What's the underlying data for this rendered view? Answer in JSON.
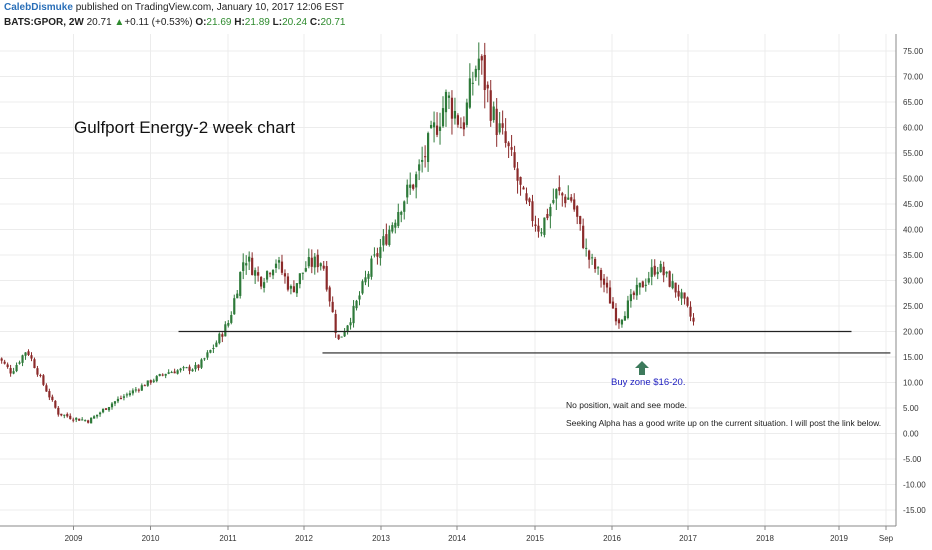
{
  "header": {
    "author": "CalebDismuke",
    "published": " published on TradingView.com, January 10, 2017 12:06 EST",
    "symbol": "BATS:GPOR, 2W",
    "last": "20.71",
    "up_arrow": "▲",
    "change": "+0.11 (+0.53%)",
    "o_label": "O:",
    "o_value": "21.69",
    "h_label": "H:",
    "h_value": "21.89",
    "l_label": "L:",
    "l_value": "20.24",
    "c_label": "C:",
    "c_value": "20.71"
  },
  "colors": {
    "up": "#2e7a3a",
    "down": "#8b2a2a",
    "line": "#222222",
    "grid": "#ececec",
    "arrow": "#3d7a5c",
    "buy_text": "#2020c0"
  },
  "chart_data": {
    "type": "candlestick",
    "title": "Gulfport Energy-2 week chart",
    "ylim": [
      -17.5,
      77.5
    ],
    "y_ticks": [
      "75.00",
      "70.00",
      "65.00",
      "60.00",
      "55.00",
      "50.00",
      "45.00",
      "40.00",
      "35.00",
      "30.00",
      "25.00",
      "20.00",
      "15.00",
      "10.00",
      "5.00",
      "0.00",
      "-5.00",
      "-10.00",
      "-15.00"
    ],
    "x_ticks": [
      "2009",
      "2010",
      "2011",
      "2012",
      "2013",
      "2014",
      "2015",
      "2016",
      "2017",
      "2018",
      "2019",
      "Sep"
    ],
    "grid": true,
    "trend_anchors": [
      {
        "year": 2008.0,
        "close": 15.5
      },
      {
        "year": 2008.2,
        "close": 12.0
      },
      {
        "year": 2008.4,
        "close": 16.5
      },
      {
        "year": 2008.6,
        "close": 10.0
      },
      {
        "year": 2008.8,
        "close": 4.0
      },
      {
        "year": 2009.0,
        "close": 3.0
      },
      {
        "year": 2009.2,
        "close": 2.5
      },
      {
        "year": 2009.5,
        "close": 6.0
      },
      {
        "year": 2009.9,
        "close": 9.5
      },
      {
        "year": 2010.2,
        "close": 12.0
      },
      {
        "year": 2010.6,
        "close": 13.0
      },
      {
        "year": 2010.8,
        "close": 17.0
      },
      {
        "year": 2011.0,
        "close": 22.0
      },
      {
        "year": 2011.2,
        "close": 35.0
      },
      {
        "year": 2011.4,
        "close": 30.0
      },
      {
        "year": 2011.6,
        "close": 34.0
      },
      {
        "year": 2011.8,
        "close": 28.0
      },
      {
        "year": 2012.0,
        "close": 33.0
      },
      {
        "year": 2012.2,
        "close": 34.0
      },
      {
        "year": 2012.4,
        "close": 18.0
      },
      {
        "year": 2012.6,
        "close": 24.0
      },
      {
        "year": 2012.8,
        "close": 32.0
      },
      {
        "year": 2013.0,
        "close": 38.0
      },
      {
        "year": 2013.2,
        "close": 45.0
      },
      {
        "year": 2013.4,
        "close": 50.0
      },
      {
        "year": 2013.6,
        "close": 58.0
      },
      {
        "year": 2013.8,
        "close": 66.0
      },
      {
        "year": 2014.0,
        "close": 60.0
      },
      {
        "year": 2014.2,
        "close": 74.0
      },
      {
        "year": 2014.4,
        "close": 62.0
      },
      {
        "year": 2014.6,
        "close": 55.0
      },
      {
        "year": 2014.8,
        "close": 45.0
      },
      {
        "year": 2015.0,
        "close": 40.0
      },
      {
        "year": 2015.2,
        "close": 47.0
      },
      {
        "year": 2015.4,
        "close": 46.0
      },
      {
        "year": 2015.6,
        "close": 35.0
      },
      {
        "year": 2015.8,
        "close": 30.0
      },
      {
        "year": 2016.0,
        "close": 22.0
      },
      {
        "year": 2016.2,
        "close": 27.0
      },
      {
        "year": 2016.5,
        "close": 33.0
      },
      {
        "year": 2016.8,
        "close": 27.0
      },
      {
        "year": 2017.0,
        "close": 20.71
      }
    ],
    "lines": [
      {
        "label": "support-20",
        "price": 20.0,
        "from_year": 2010.35,
        "to_year": 2019.0
      },
      {
        "label": "support-16",
        "price": 15.8,
        "from_year": 2012.2,
        "to_year": 2019.5
      }
    ],
    "annotations": {
      "buy_zone": "Buy zone $16-20.",
      "position_note": "No position, wait and see mode.",
      "seeking_alpha_note": "Seeking Alpha has a good write up on the current situation. I will post the link below."
    }
  }
}
